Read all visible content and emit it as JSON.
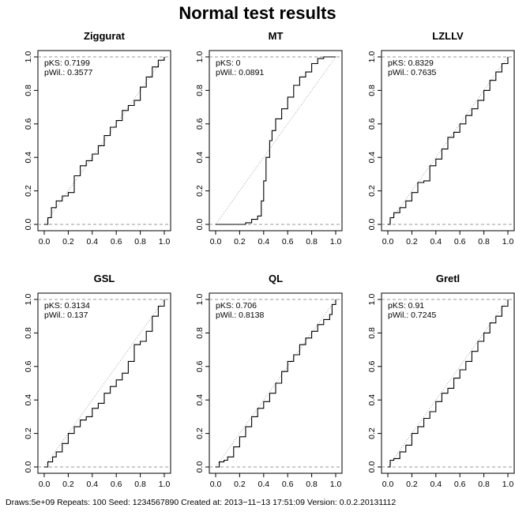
{
  "title": "Normal test results",
  "footer": "Draws:5e+09 Repeats: 100 Seed: 1234567890 Created at: 2013−11−13 17:51:09 Version: 0.0.2.20131112",
  "colors": {
    "ecdf": "#000000",
    "reference": "#9a9a9a",
    "guide": "#9a9a9a"
  },
  "chart_data": [
    {
      "type": "line",
      "title": "Ziggurat",
      "annotations": [
        "pKS: 0.7199",
        "pWil.: 0.3577"
      ],
      "xticks": [
        "0.0",
        "0.2",
        "0.4",
        "0.6",
        "0.8",
        "1.0"
      ],
      "yticks": [
        "0.0",
        "0.2",
        "0.4",
        "0.6",
        "0.8",
        "1.0"
      ],
      "xlim": [
        0,
        1
      ],
      "ylim": [
        0,
        1
      ],
      "series": [
        {
          "x": [
            0,
            0.03,
            0.06,
            0.1,
            0.15,
            0.2,
            0.25,
            0.3,
            0.35,
            0.4,
            0.45,
            0.5,
            0.55,
            0.6,
            0.65,
            0.7,
            0.75,
            0.8,
            0.85,
            0.9,
            0.95,
            1.0
          ],
          "y": [
            0,
            0.04,
            0.1,
            0.14,
            0.17,
            0.19,
            0.29,
            0.35,
            0.38,
            0.42,
            0.47,
            0.53,
            0.58,
            0.62,
            0.68,
            0.71,
            0.74,
            0.82,
            0.88,
            0.94,
            0.98,
            1.0
          ]
        }
      ]
    },
    {
      "type": "line",
      "title": "MT",
      "annotations": [
        "pKS: 0",
        "pWil.: 0.0891"
      ],
      "xticks": [
        "0.0",
        "0.2",
        "0.4",
        "0.6",
        "0.8",
        "1.0"
      ],
      "yticks": [
        "0.0",
        "0.2",
        "0.4",
        "0.6",
        "0.8",
        "1.0"
      ],
      "xlim": [
        0,
        1
      ],
      "ylim": [
        0,
        1
      ],
      "series": [
        {
          "x": [
            0,
            0.25,
            0.3,
            0.35,
            0.38,
            0.4,
            0.42,
            0.45,
            0.47,
            0.5,
            0.55,
            0.6,
            0.65,
            0.7,
            0.75,
            0.8,
            0.85,
            0.9,
            0.95,
            1.0
          ],
          "y": [
            0,
            0.01,
            0.03,
            0.05,
            0.14,
            0.26,
            0.4,
            0.5,
            0.56,
            0.63,
            0.69,
            0.76,
            0.83,
            0.88,
            0.91,
            0.96,
            0.99,
            1.0,
            1.0,
            1.0
          ]
        }
      ]
    },
    {
      "type": "line",
      "title": "LZLLV",
      "annotations": [
        "pKS: 0.8329",
        "pWil.: 0.7635"
      ],
      "xticks": [
        "0.0",
        "0.2",
        "0.4",
        "0.6",
        "0.8",
        "1.0"
      ],
      "yticks": [
        "0.0",
        "0.2",
        "0.4",
        "0.6",
        "0.8",
        "1.0"
      ],
      "xlim": [
        0,
        1
      ],
      "ylim": [
        0,
        1
      ],
      "series": [
        {
          "x": [
            0,
            0.02,
            0.05,
            0.1,
            0.15,
            0.2,
            0.25,
            0.3,
            0.35,
            0.4,
            0.45,
            0.5,
            0.55,
            0.6,
            0.65,
            0.7,
            0.75,
            0.8,
            0.85,
            0.9,
            0.95,
            1.0
          ],
          "y": [
            0,
            0.04,
            0.07,
            0.1,
            0.14,
            0.19,
            0.25,
            0.26,
            0.35,
            0.39,
            0.45,
            0.52,
            0.55,
            0.6,
            0.65,
            0.69,
            0.74,
            0.8,
            0.86,
            0.91,
            0.96,
            1.0
          ]
        }
      ]
    },
    {
      "type": "line",
      "title": "GSL",
      "annotations": [
        "pKS: 0.3134",
        "pWil.: 0.137"
      ],
      "xticks": [
        "0.0",
        "0.2",
        "0.4",
        "0.6",
        "0.8",
        "1.0"
      ],
      "yticks": [
        "0.0",
        "0.2",
        "0.4",
        "0.6",
        "0.8",
        "1.0"
      ],
      "xlim": [
        0,
        1
      ],
      "ylim": [
        0,
        1
      ],
      "series": [
        {
          "x": [
            0,
            0.03,
            0.07,
            0.1,
            0.15,
            0.2,
            0.25,
            0.3,
            0.35,
            0.4,
            0.45,
            0.5,
            0.55,
            0.6,
            0.65,
            0.7,
            0.75,
            0.8,
            0.85,
            0.9,
            0.95,
            1.0
          ],
          "y": [
            0,
            0.03,
            0.06,
            0.09,
            0.14,
            0.2,
            0.24,
            0.28,
            0.3,
            0.35,
            0.38,
            0.44,
            0.48,
            0.52,
            0.56,
            0.63,
            0.73,
            0.75,
            0.81,
            0.9,
            0.96,
            1.0
          ]
        }
      ]
    },
    {
      "type": "line",
      "title": "QL",
      "annotations": [
        "pKS: 0.706",
        "pWil.: 0.8138"
      ],
      "xticks": [
        "0.0",
        "0.2",
        "0.4",
        "0.6",
        "0.8",
        "1.0"
      ],
      "yticks": [
        "0.0",
        "0.2",
        "0.4",
        "0.6",
        "0.8",
        "1.0"
      ],
      "xlim": [
        0,
        1
      ],
      "ylim": [
        0,
        1
      ],
      "series": [
        {
          "x": [
            0,
            0.03,
            0.07,
            0.1,
            0.15,
            0.2,
            0.25,
            0.3,
            0.35,
            0.4,
            0.45,
            0.5,
            0.55,
            0.6,
            0.65,
            0.7,
            0.75,
            0.8,
            0.85,
            0.9,
            0.95,
            0.97,
            1.0
          ],
          "y": [
            0,
            0.03,
            0.04,
            0.06,
            0.12,
            0.18,
            0.24,
            0.3,
            0.35,
            0.39,
            0.44,
            0.5,
            0.57,
            0.63,
            0.67,
            0.73,
            0.77,
            0.81,
            0.85,
            0.88,
            0.91,
            0.97,
            1.0
          ]
        }
      ]
    },
    {
      "type": "line",
      "title": "Gretl",
      "annotations": [
        "pKS: 0.91",
        "pWil.: 0.7245"
      ],
      "xticks": [
        "0.0",
        "0.2",
        "0.4",
        "0.6",
        "0.8",
        "1.0"
      ],
      "yticks": [
        "0.0",
        "0.2",
        "0.4",
        "0.6",
        "0.8",
        "1.0"
      ],
      "xlim": [
        0,
        1
      ],
      "ylim": [
        0,
        1
      ],
      "series": [
        {
          "x": [
            0,
            0.02,
            0.05,
            0.1,
            0.15,
            0.2,
            0.25,
            0.3,
            0.35,
            0.4,
            0.45,
            0.5,
            0.55,
            0.6,
            0.65,
            0.7,
            0.75,
            0.8,
            0.85,
            0.9,
            0.95,
            1.0
          ],
          "y": [
            0,
            0.04,
            0.05,
            0.09,
            0.13,
            0.2,
            0.24,
            0.29,
            0.33,
            0.39,
            0.44,
            0.47,
            0.53,
            0.58,
            0.63,
            0.69,
            0.75,
            0.8,
            0.86,
            0.9,
            0.96,
            1.0
          ]
        }
      ]
    }
  ]
}
